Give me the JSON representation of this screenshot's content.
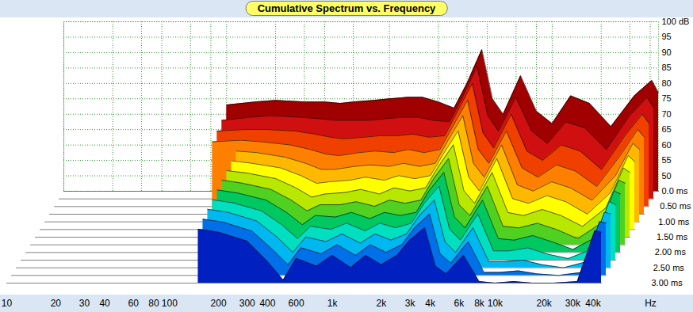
{
  "chart_data": {
    "type": "waterfall",
    "title": "Cumulative Spectrum vs. Frequency",
    "xlabel": "Hz",
    "log": "x",
    "grid": true,
    "xlim": [
      10,
      45000
    ],
    "xticks": [
      10,
      20,
      30,
      40,
      60,
      80,
      100,
      200,
      300,
      400,
      600,
      {
        "value": 1000,
        "label": "1k"
      },
      {
        "value": 2000,
        "label": "2k"
      },
      {
        "value": 3000,
        "label": "3k"
      },
      {
        "value": 4000,
        "label": "4k"
      },
      {
        "value": 6000,
        "label": "6k"
      },
      {
        "value": 8000,
        "label": "8k"
      },
      {
        "value": 10000,
        "label": "10k"
      },
      {
        "value": 20000,
        "label": "20k"
      },
      {
        "value": 30000,
        "label": "30k"
      },
      {
        "value": 40000,
        "label": "40k"
      }
    ],
    "ylim": [
      45,
      100
    ],
    "yticks": [
      50,
      55,
      60,
      65,
      70,
      75,
      80,
      85,
      90,
      95,
      {
        "value": 100,
        "label": "100 dB"
      }
    ],
    "zlim": [
      0,
      3
    ],
    "zticks": [
      {
        "value": 0,
        "label": "0.0 ms"
      },
      {
        "value": 0.5,
        "label": "0.50 ms"
      },
      {
        "value": 1,
        "label": "1.00 ms"
      },
      {
        "value": 1.5,
        "label": "1.50 ms"
      },
      {
        "value": 2,
        "label": "2.00 ms"
      },
      {
        "value": 2.5,
        "label": "2.50 ms"
      },
      {
        "value": 3,
        "label": "3.00 ms"
      }
    ],
    "x": [
      100,
      150,
      200,
      300,
      400,
      500,
      600,
      800,
      1000,
      1300,
      1600,
      2000,
      2500,
      3000,
      3700,
      4300,
      5000,
      6400,
      8000,
      10000,
      13000,
      17000,
      23000,
      32000,
      41000,
      45000
    ],
    "series": [
      {
        "time": 0,
        "color": "#a00000",
        "values": [
          73,
          74,
          74.5,
          74,
          74,
          73.5,
          74,
          74.5,
          75,
          75.5,
          75.5,
          74,
          72,
          80,
          91,
          75,
          70,
          82.5,
          71,
          67,
          76,
          73.5,
          66,
          76,
          81,
          77
        ]
      },
      {
        "time": 0.25,
        "color": "#d01010",
        "values": [
          70.5,
          71.5,
          72,
          71.5,
          71,
          70.5,
          70.5,
          70.5,
          71,
          71.5,
          71.5,
          70.5,
          70,
          78,
          88,
          72,
          67,
          78,
          67,
          63,
          70,
          68,
          61,
          72,
          78,
          74.5
        ]
      },
      {
        "time": 0.5,
        "color": "#f04000",
        "values": [
          69.5,
          70,
          70,
          69.5,
          68.5,
          67.5,
          67,
          67.5,
          68,
          68,
          68.5,
          67.5,
          68,
          76,
          85,
          69,
          64,
          75,
          63,
          60,
          65,
          63,
          57,
          68,
          75,
          72
        ]
      },
      {
        "time": 0.75,
        "color": "#ff8000",
        "values": [
          68.5,
          69,
          68.5,
          67.5,
          66,
          64.5,
          64,
          65,
          65.5,
          65,
          66,
          65,
          66,
          73.5,
          82,
          66,
          61.5,
          72,
          60,
          57,
          61,
          59,
          54,
          64,
          72.5,
          70
        ]
      },
      {
        "time": 1,
        "color": "#ffb800",
        "values": [
          null,
          68,
          67.5,
          66,
          64,
          62,
          62,
          63,
          63.5,
          63,
          64,
          63,
          64,
          71.5,
          79.5,
          64,
          59.5,
          70,
          57,
          55,
          58,
          56,
          52,
          60,
          70.5,
          68.5
        ]
      },
      {
        "time": 1.25,
        "color": "#ffff00",
        "values": [
          null,
          67.3,
          66.5,
          65,
          62.5,
          60,
          60.5,
          61,
          62,
          61,
          62.5,
          61.5,
          62.5,
          69.5,
          77,
          62,
          57.5,
          68,
          55,
          53.5,
          56,
          54,
          50,
          57,
          69,
          67
        ]
      },
      {
        "time": 1.5,
        "color": "#b8e800",
        "values": [
          null,
          66.6,
          65.8,
          64,
          61,
          58,
          59,
          59.5,
          60.5,
          59,
          61,
          60,
          61,
          68,
          75,
          60,
          56,
          66,
          53,
          52,
          54,
          52,
          48.5,
          54.5,
          67.5,
          66
        ]
      },
      {
        "time": 1.75,
        "color": "#50d020",
        "values": [
          null,
          66,
          65,
          63,
          59.5,
          56,
          58,
          58,
          59,
          57.5,
          59.5,
          58.5,
          59.5,
          66.5,
          73,
          58,
          54.5,
          64,
          51,
          50.5,
          52,
          50,
          47,
          52,
          66,
          65
        ]
      },
      {
        "time": 2,
        "color": "#00c860",
        "values": [
          null,
          65.3,
          64.3,
          62,
          58,
          54,
          57,
          56.5,
          58,
          56,
          58,
          57,
          58,
          65,
          71,
          56.5,
          53,
          62,
          49.5,
          49,
          50.5,
          48.5,
          46,
          50,
          65,
          64
        ]
      },
      {
        "time": 2.25,
        "color": "#00e0c0",
        "values": [
          null,
          64.6,
          63.6,
          61,
          56.5,
          52,
          56,
          55,
          57,
          54.5,
          57,
          55.5,
          57,
          63.5,
          69,
          55,
          51.5,
          60,
          48,
          48,
          49,
          47,
          45.5,
          48.5,
          64,
          63
        ]
      },
      {
        "time": 2.5,
        "color": "#00b8f0",
        "values": [
          null,
          64,
          63,
          60.2,
          55,
          50,
          55,
          53.5,
          56,
          53,
          56,
          54,
          56,
          62,
          67,
          53.5,
          50,
          58,
          47,
          47,
          47.5,
          46,
          45,
          47,
          63,
          62.5
        ]
      },
      {
        "time": 2.75,
        "color": "#0070e8",
        "values": [
          null,
          63.3,
          62.3,
          59.4,
          53.5,
          48.5,
          54,
          52,
          55,
          51.5,
          55,
          52.5,
          55,
          60.5,
          65,
          52,
          49,
          56,
          46,
          46,
          46.5,
          45.5,
          45,
          46,
          62.5,
          62
        ]
      },
      {
        "time": 3,
        "color": "#0020c0",
        "values": [
          null,
          62.5,
          61.5,
          58.6,
          52,
          46,
          53,
          50.5,
          54,
          50,
          54,
          51,
          54,
          59,
          63,
          50.5,
          48,
          54,
          45.5,
          45,
          45.5,
          45,
          45,
          45.5,
          62,
          61.5
        ]
      }
    ]
  }
}
